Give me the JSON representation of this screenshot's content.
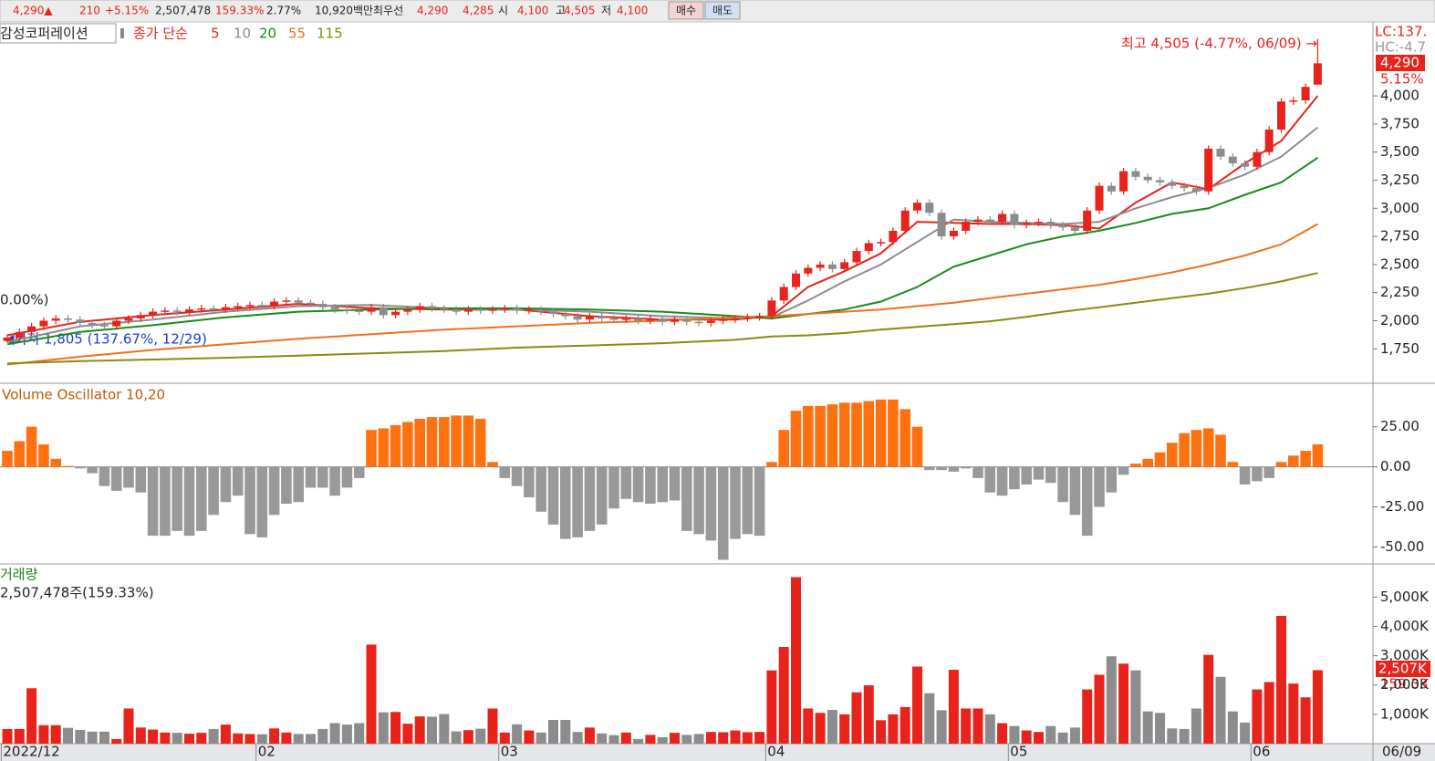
{
  "info_bar": {
    "items": [
      "4,290▲",
      "210",
      "+5.15%",
      "2,507,478",
      "159.33%",
      "2.77%",
      "10,920백만",
      "최우선",
      "4,290",
      "4,285",
      "시",
      "4,100",
      "고",
      "4,505",
      "저",
      "4,100"
    ],
    "buttons": [
      "매수",
      "매도"
    ]
  },
  "chart_data": [
    {
      "type": "candlestick",
      "title": "감성코퍼레이션",
      "ma_label": "종가 단순",
      "categories": [
        "2022/12",
        null,
        null,
        null,
        null,
        null,
        null,
        null,
        null,
        null,
        null,
        null,
        null,
        null,
        null,
        null,
        null,
        null,
        null,
        null,
        null,
        "02",
        null,
        null,
        null,
        null,
        null,
        null,
        null,
        null,
        null,
        null,
        null,
        null,
        null,
        null,
        null,
        null,
        null,
        null,
        null,
        "03",
        null,
        null,
        null,
        null,
        null,
        null,
        null,
        null,
        null,
        null,
        null,
        null,
        null,
        null,
        null,
        null,
        null,
        null,
        null,
        null,
        null,
        "04",
        null,
        null,
        null,
        null,
        null,
        null,
        null,
        null,
        null,
        null,
        null,
        null,
        null,
        null,
        null,
        null,
        null,
        null,
        null,
        "05",
        null,
        null,
        null,
        null,
        null,
        null,
        null,
        null,
        null,
        null,
        null,
        null,
        null,
        null,
        null,
        null,
        null,
        null,
        null,
        "06",
        null,
        null,
        null,
        null,
        null
      ],
      "last_date": "06/09",
      "open": [
        1820,
        1850,
        1900,
        1950,
        2000,
        2020,
        2010,
        1980,
        1960,
        1950,
        2000,
        2020,
        2050,
        2080,
        2090,
        2080,
        2100,
        2110,
        2100,
        2120,
        2130,
        2140,
        2130,
        2170,
        2180,
        2160,
        2150,
        2120,
        2100,
        2090,
        2080,
        2120,
        2050,
        2080,
        2100,
        2130,
        2110,
        2100,
        2080,
        2100,
        2090,
        2100,
        2110,
        2090,
        2100,
        2080,
        2060,
        2040,
        2010,
        2040,
        2020,
        2010,
        2020,
        2000,
        2020,
        1990,
        2010,
        1990,
        1980,
        2000,
        2010,
        2020,
        2030,
        2040,
        2180,
        2300,
        2420,
        2470,
        2500,
        2460,
        2520,
        2620,
        2690,
        2700,
        2800,
        2980,
        3050,
        2960,
        2750,
        2800,
        2880,
        2900,
        2880,
        2950,
        2850,
        2870,
        2880,
        2850,
        2830,
        2800,
        2980,
        3200,
        3150,
        3330,
        3280,
        3250,
        3230,
        3200,
        3180,
        3150,
        3530,
        3460,
        3400,
        3370,
        3500,
        3700,
        3950,
        3960,
        4100
      ],
      "high": [
        1880,
        1930,
        1980,
        2030,
        2050,
        2050,
        2040,
        2010,
        1990,
        2030,
        2050,
        2080,
        2110,
        2120,
        2120,
        2130,
        2140,
        2140,
        2150,
        2160,
        2170,
        2170,
        2200,
        2210,
        2210,
        2190,
        2180,
        2150,
        2130,
        2120,
        2150,
        2150,
        2110,
        2130,
        2160,
        2160,
        2140,
        2130,
        2130,
        2130,
        2130,
        2140,
        2140,
        2130,
        2130,
        2110,
        2090,
        2070,
        2070,
        2070,
        2050,
        2050,
        2050,
        2050,
        2050,
        2040,
        2040,
        2020,
        2030,
        2040,
        2050,
        2060,
        2070,
        2210,
        2330,
        2450,
        2500,
        2530,
        2530,
        2550,
        2650,
        2720,
        2730,
        2830,
        3010,
        3080,
        3080,
        2990,
        2830,
        2910,
        2930,
        2930,
        2980,
        2980,
        2900,
        2910,
        2910,
        2880,
        2860,
        3010,
        3230,
        3230,
        3360,
        3360,
        3310,
        3280,
        3260,
        3230,
        3210,
        3560,
        3560,
        3490,
        3430,
        3530,
        3730,
        3980,
        3990,
        4110,
        4505
      ],
      "low": [
        1805,
        1820,
        1870,
        1920,
        1970,
        1980,
        1950,
        1930,
        1920,
        1920,
        1970,
        1990,
        2020,
        2050,
        2050,
        2050,
        2070,
        2070,
        2070,
        2090,
        2100,
        2100,
        2100,
        2140,
        2130,
        2120,
        2090,
        2070,
        2060,
        2050,
        2050,
        2020,
        2020,
        2050,
        2070,
        2080,
        2070,
        2050,
        2050,
        2060,
        2060,
        2070,
        2060,
        2060,
        2050,
        2030,
        2010,
        1980,
        1980,
        1990,
        1980,
        1980,
        1970,
        1970,
        1960,
        1960,
        1960,
        1950,
        1950,
        1970,
        1980,
        1990,
        2000,
        2010,
        2150,
        2270,
        2390,
        2440,
        2430,
        2430,
        2490,
        2590,
        2660,
        2670,
        2770,
        2950,
        2930,
        2720,
        2720,
        2770,
        2850,
        2850,
        2850,
        2820,
        2820,
        2840,
        2820,
        2800,
        2770,
        2770,
        2950,
        3120,
        3120,
        3250,
        3220,
        3200,
        3170,
        3150,
        3120,
        3120,
        3430,
        3370,
        3340,
        3340,
        3470,
        3670,
        3920,
        3930,
        4100
      ],
      "close": [
        1850,
        1900,
        1950,
        2000,
        2020,
        2010,
        1980,
        1960,
        1950,
        2000,
        2020,
        2050,
        2080,
        2090,
        2080,
        2100,
        2110,
        2100,
        2120,
        2130,
        2140,
        2130,
        2170,
        2180,
        2160,
        2150,
        2120,
        2100,
        2090,
        2080,
        2120,
        2050,
        2080,
        2100,
        2130,
        2110,
        2100,
        2080,
        2100,
        2090,
        2100,
        2110,
        2090,
        2100,
        2080,
        2060,
        2040,
        2010,
        2040,
        2020,
        2010,
        2020,
        2000,
        2020,
        1990,
        2010,
        1990,
        1980,
        2000,
        2010,
        2020,
        2030,
        2040,
        2180,
        2300,
        2420,
        2470,
        2500,
        2460,
        2520,
        2620,
        2690,
        2700,
        2800,
        2980,
        3050,
        2960,
        2750,
        2800,
        2880,
        2900,
        2880,
        2950,
        2850,
        2870,
        2880,
        2850,
        2830,
        2800,
        2980,
        3200,
        3150,
        3330,
        3280,
        3250,
        3230,
        3200,
        3180,
        3150,
        3530,
        3460,
        3400,
        3370,
        3500,
        3700,
        3950,
        3960,
        4080,
        4290
      ],
      "up_color": "#e8231b",
      "down_color": "#8c8c8c",
      "ma": [
        {
          "name": "5",
          "color": "#e8231b",
          "x": [
            0,
            6,
            12,
            18,
            24,
            30,
            36,
            42,
            48,
            54,
            60,
            63,
            66,
            69,
            72,
            75,
            78,
            81,
            84,
            87,
            90,
            93,
            96,
            99,
            102,
            105,
            108
          ],
          "values": [
            1870,
            1990,
            2050,
            2100,
            2150,
            2110,
            2100,
            2100,
            2040,
            2010,
            2010,
            2040,
            2300,
            2440,
            2600,
            2880,
            2870,
            2860,
            2860,
            2850,
            2820,
            3050,
            3230,
            3170,
            3400,
            3600,
            4000
          ]
        },
        {
          "name": "10",
          "color": "#8c8c8c",
          "x": [
            0,
            6,
            12,
            18,
            24,
            30,
            36,
            42,
            48,
            54,
            60,
            63,
            66,
            69,
            72,
            75,
            78,
            81,
            84,
            87,
            90,
            93,
            96,
            99,
            102,
            105,
            108
          ],
          "values": [
            1810,
            1950,
            2010,
            2080,
            2130,
            2140,
            2110,
            2100,
            2080,
            2040,
            2020,
            2030,
            2180,
            2350,
            2500,
            2700,
            2900,
            2880,
            2870,
            2860,
            2880,
            3000,
            3100,
            3180,
            3300,
            3460,
            3720
          ]
        },
        {
          "name": "20",
          "color": "#1a8a1a",
          "x": [
            0,
            6,
            12,
            18,
            24,
            30,
            36,
            42,
            48,
            54,
            60,
            63,
            66,
            69,
            72,
            75,
            78,
            81,
            84,
            87,
            90,
            93,
            96,
            99,
            102,
            105,
            108
          ],
          "values": [
            1790,
            1900,
            1960,
            2030,
            2080,
            2100,
            2110,
            2110,
            2100,
            2080,
            2040,
            2020,
            2060,
            2100,
            2170,
            2300,
            2480,
            2580,
            2680,
            2750,
            2800,
            2870,
            2950,
            3000,
            3120,
            3230,
            3450
          ]
        },
        {
          "name": "55",
          "color": "#f07020",
          "x": [
            0,
            6,
            12,
            18,
            24,
            30,
            36,
            42,
            48,
            54,
            60,
            63,
            66,
            69,
            72,
            75,
            78,
            81,
            84,
            87,
            90,
            93,
            96,
            99,
            102,
            105,
            108
          ],
          "values": [
            1610,
            1680,
            1740,
            1790,
            1840,
            1880,
            1920,
            1950,
            1980,
            2000,
            2030,
            2040,
            2060,
            2080,
            2100,
            2130,
            2160,
            2200,
            2240,
            2280,
            2320,
            2370,
            2430,
            2500,
            2580,
            2680,
            2860
          ]
        },
        {
          "name": "115",
          "color": "#8a8a10",
          "x": [
            0,
            6,
            12,
            18,
            24,
            30,
            36,
            42,
            48,
            54,
            60,
            63,
            66,
            69,
            72,
            75,
            78,
            81,
            84,
            87,
            90,
            93,
            96,
            99,
            102,
            105,
            108
          ],
          "values": [
            1620,
            1640,
            1655,
            1670,
            1690,
            1710,
            1730,
            1760,
            1780,
            1800,
            1830,
            1860,
            1870,
            1890,
            1920,
            1945,
            1970,
            1995,
            2035,
            2080,
            2120,
            2160,
            2200,
            2240,
            2290,
            2350,
            2424
          ]
        }
      ],
      "ylim": [
        1460,
        4650
      ],
      "yticks": [
        {
          "value": 1750,
          "label": "1,750"
        },
        {
          "value": 2000,
          "label": "2,000"
        },
        {
          "value": 2250,
          "label": "2,250"
        },
        {
          "value": 2500,
          "label": "2,500"
        },
        {
          "value": 2750,
          "label": "2,750"
        },
        {
          "value": 3000,
          "label": "3,000"
        },
        {
          "value": 3250,
          "label": "3,250"
        },
        {
          "value": 3500,
          "label": "3,500"
        },
        {
          "value": 3750,
          "label": "3,750"
        },
        {
          "value": 4000,
          "label": "4,000"
        }
      ],
      "high_annotation": "최고 4,505 (-4.77%, 06/09) →",
      "low_annotation": "◀최저 1,805 (137.67%, 12/29)",
      "left_fragment": "0.00%)",
      "side_labels": {
        "lc": "LC:137.",
        "hc": "HC:-4.7",
        "last_price": "4,290",
        "change": "5.15%"
      }
    },
    {
      "type": "bar",
      "title": "Volume Oscillator 10,20",
      "values": [
        10,
        16,
        25,
        14,
        5,
        0.5,
        -1,
        -4,
        -12,
        -15,
        -13,
        -16,
        -43,
        -43,
        -40,
        -43,
        -40,
        -30,
        -22,
        -18,
        -42,
        -44,
        -30,
        -23,
        -22,
        -13,
        -13,
        -18,
        -13,
        -7,
        23,
        24,
        26,
        28,
        30,
        31,
        31,
        32,
        32,
        30,
        3,
        -7,
        -12,
        -19,
        -28,
        -36,
        -45,
        -44,
        -40,
        -36,
        -26,
        -20,
        -22,
        -23,
        -22,
        -21,
        -40,
        -42,
        -46,
        -58,
        -45,
        -42,
        -43,
        3,
        23,
        35,
        38,
        38,
        39,
        40,
        40,
        41,
        42,
        42,
        36,
        25,
        -2,
        -2,
        -3,
        -1,
        -7,
        -16,
        -18,
        -14,
        -11,
        -8,
        -10,
        -22,
        -30,
        -43,
        -25,
        -16,
        -5,
        2,
        5,
        9,
        15,
        21,
        23,
        24,
        20,
        3,
        -11,
        -9,
        -7,
        3,
        7,
        10,
        14
      ],
      "pos_color": "#ff7010",
      "neg_color": "#999999",
      "ylim": [
        -60,
        51
      ],
      "yticks": [
        {
          "value": 25,
          "label": "25.00"
        },
        {
          "value": 0,
          "label": "0.00"
        },
        {
          "value": -25,
          "label": "-25.00"
        },
        {
          "value": -50,
          "label": "-50.00"
        }
      ]
    },
    {
      "type": "bar",
      "title": "거래량",
      "subtitle": "2,507,478주(159.33%)",
      "values": [
        500,
        500,
        1890,
        630,
        630,
        540,
        470,
        410,
        410,
        160,
        1200,
        550,
        480,
        380,
        370,
        340,
        370,
        500,
        650,
        350,
        330,
        320,
        520,
        380,
        330,
        330,
        500,
        700,
        650,
        700,
        3380,
        1070,
        1080,
        680,
        930,
        920,
        1010,
        420,
        460,
        510,
        1200,
        380,
        660,
        450,
        380,
        810,
        810,
        400,
        550,
        350,
        290,
        380,
        160,
        300,
        220,
        370,
        300,
        330,
        400,
        390,
        450,
        390,
        400,
        2500,
        3300,
        5680,
        1200,
        1050,
        1150,
        1000,
        1750,
        1990,
        800,
        1000,
        1250,
        2630,
        1720,
        1140,
        2520,
        1200,
        1200,
        1000,
        700,
        600,
        450,
        400,
        600,
        380,
        550,
        1850,
        2350,
        2980,
        2730,
        2500,
        1100,
        1050,
        520,
        500,
        1200,
        3030,
        2280,
        1100,
        720,
        1850,
        2100,
        4360,
        2050,
        1580,
        2507
      ],
      "ylim": [
        0,
        6070
      ],
      "yticks": [
        {
          "value": 1000,
          "label": "1,000K"
        },
        {
          "value": 2000,
          "label": "2,000K"
        },
        {
          "value": 3000,
          "label": "3,000K"
        },
        {
          "value": 4000,
          "label": "4,000K"
        },
        {
          "value": 5000,
          "label": "5,000K"
        }
      ],
      "last_label": "2,507K",
      "ratio_label": "159.33"
    }
  ]
}
